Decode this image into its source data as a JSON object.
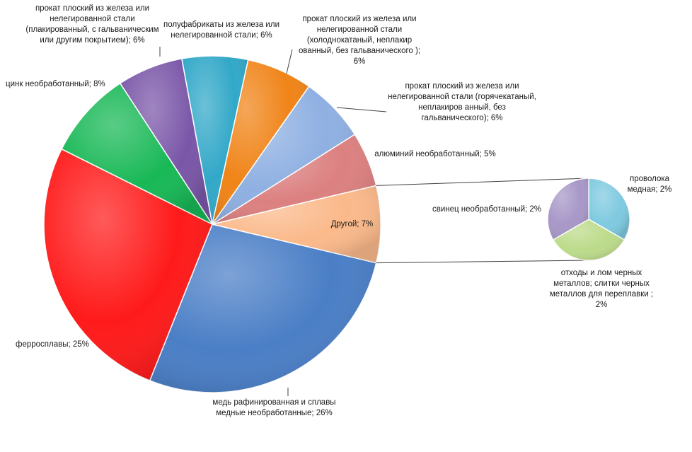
{
  "chart_data": {
    "type": "pie",
    "subtype": "bar-of-pie (pie of pie)",
    "slices": [
      {
        "label": "медь рафинированная и сплавы медные необработанные; 26%",
        "value": 26,
        "color": "#4A7EC6"
      },
      {
        "label": "ферросплавы; 25%",
        "value": 25,
        "color": "#FF1A1A"
      },
      {
        "label": "цинк необработанный; 8%",
        "value": 8,
        "color": "#18B856"
      },
      {
        "label": "прокат плоский из железа или нелегированной стали (плакированный, с гальваническим или другим покрытием); 6%",
        "value": 6,
        "color": "#7A56A8"
      },
      {
        "label": "полуфабрикаты из железа или нелегированной стали; 6%",
        "value": 6,
        "color": "#32A8C8"
      },
      {
        "label": "прокат плоский из железа или нелегированной стали (холоднокатаный, неплакированный, без гальванического ); 6%",
        "value": 6,
        "color": "#F08418"
      },
      {
        "label": "прокат плоский из железа или нелегированной стали (горячекатаный, неплакированный, без гальванического); 6%",
        "value": 6,
        "color": "#8FB0E2"
      },
      {
        "label": "алюминий необработанный; 5%",
        "value": 5,
        "color": "#DC8080"
      },
      {
        "label": "Другой; 7%",
        "value": 7,
        "color": "#FBB98A"
      }
    ],
    "secondary": [
      {
        "label": "проволока медная; 2%",
        "value": 2,
        "color": "#7FCAE0"
      },
      {
        "label": "отходы и лом черных металлов; слитки черных металлов для переплавки ; 2%",
        "value": 2,
        "color": "#BCDB8A"
      },
      {
        "label": "свинец необработанный; 2%",
        "value": 2,
        "color": "#A898C8"
      }
    ],
    "labels": {
      "copper": "медь рафинированная и сплавы медные необработанные; 26%",
      "ferro": "ферросплавы; 25%",
      "zinc": "цинк необработанный; 8%",
      "plated": "прокат плоский из железа или нелегированной стали (плакированный, с гальваническим или другим покрытием); 6%",
      "semi": "полуфабрикаты из железа или нелегированной стали; 6%",
      "cold": "прокат плоский из железа или нелегированной стали (холоднокатаный, неплакир ованный, без гальванического ); 6%",
      "hot": "прокат плоский из железа или нелегированной стали (горячекатаный, неплакиров анный, без гальванического); 6%",
      "alu": "алюминий необработанный; 5%",
      "other": "Другой; 7%",
      "wire": "проволока медная; 2%",
      "lead": "свинец необработанный; 2%",
      "scrap": "отходы и лом черных металлов; слитки черных металлов для переплавки ; 2%"
    }
  }
}
